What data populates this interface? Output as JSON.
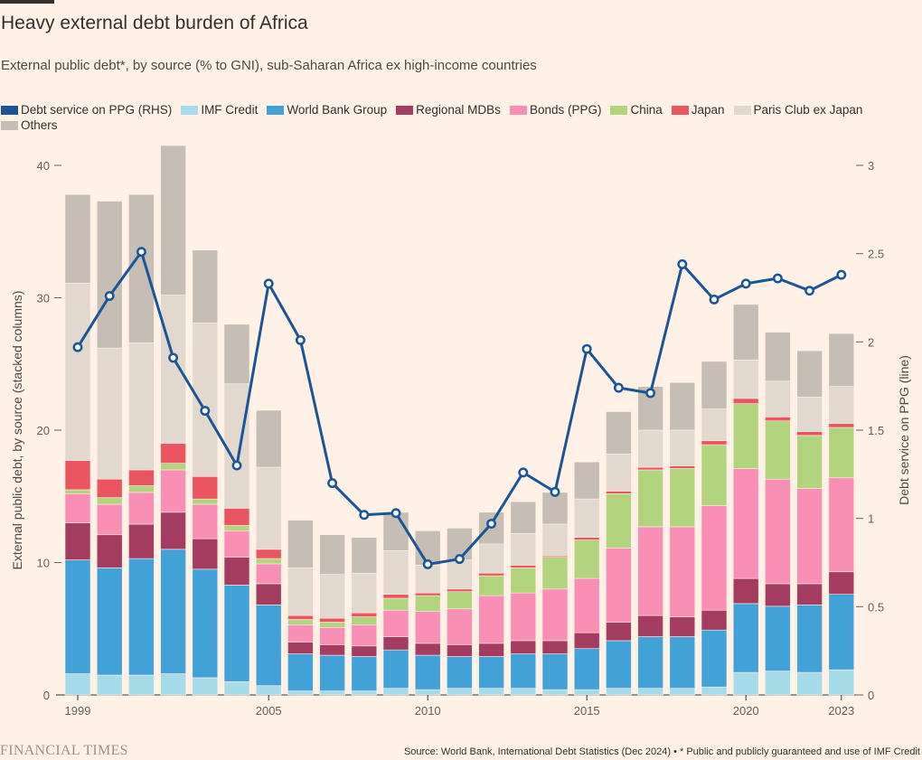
{
  "title": "Heavy external debt burden of Africa",
  "subtitle": "External public debt*, by source (% to GNI), sub-Saharan Africa ex high-income countries",
  "legend": [
    {
      "label": "Debt service on PPG (RHS)",
      "color": "#1a5598"
    },
    {
      "label": "IMF Credit",
      "color": "#a6dbea"
    },
    {
      "label": "World Bank Group",
      "color": "#42a1d6"
    },
    {
      "label": "Regional MDBs",
      "color": "#a33c5f"
    },
    {
      "label": "Bonds (PPG)",
      "color": "#f98fb5"
    },
    {
      "label": "China",
      "color": "#b3d47f"
    },
    {
      "label": "Japan",
      "color": "#eb5461"
    },
    {
      "label": "Paris Club ex Japan",
      "color": "#e3d8cd"
    },
    {
      "label": "Others",
      "color": "#c6beb4"
    }
  ],
  "footer": {
    "brand": "FINANCIAL TIMES",
    "source": "Source: World Bank, International Debt Statistics (Dec 2024) • * Public and publicly guaranteed and use of IMF Credit"
  },
  "chart_data": {
    "type": "bar",
    "stacked": true,
    "years": [
      1999,
      2000,
      2001,
      2002,
      2003,
      2004,
      2005,
      2006,
      2007,
      2008,
      2009,
      2010,
      2011,
      2012,
      2013,
      2014,
      2015,
      2016,
      2017,
      2018,
      2019,
      2020,
      2021,
      2022,
      2023
    ],
    "x_tick_labels": [
      "1999",
      "2005",
      "2010",
      "2015",
      "2020",
      "2023"
    ],
    "ylabel_left": "External public debt, by source (stacked columns)",
    "ylabel_right": "Debt service on PPG (line)",
    "ylim_left": [
      0,
      40
    ],
    "ylim_right": [
      0,
      3
    ],
    "yticks_left": [
      "0",
      "10",
      "20",
      "30",
      "40"
    ],
    "yticks_right": [
      "0",
      "0.5",
      "1",
      "1.5",
      "2",
      "2.5",
      "3"
    ],
    "series": [
      {
        "name": "IMF Credit",
        "color": "#a6dbea",
        "values": [
          1.6,
          1.5,
          1.5,
          1.6,
          1.3,
          1.0,
          0.7,
          0.3,
          0.3,
          0.3,
          0.5,
          0.4,
          0.5,
          0.5,
          0.5,
          0.4,
          0.4,
          0.5,
          0.5,
          0.5,
          0.6,
          1.7,
          1.8,
          1.7,
          1.9
        ]
      },
      {
        "name": "World Bank Group",
        "color": "#42a1d6",
        "values": [
          8.6,
          8.1,
          8.8,
          9.4,
          8.2,
          7.3,
          6.1,
          2.8,
          2.7,
          2.6,
          2.9,
          2.6,
          2.4,
          2.4,
          2.6,
          2.7,
          3.1,
          3.6,
          3.9,
          3.9,
          4.3,
          5.2,
          4.9,
          5.1,
          5.7
        ]
      },
      {
        "name": "Regional MDBs",
        "color": "#a33c5f",
        "values": [
          2.8,
          2.5,
          2.6,
          2.8,
          2.3,
          2.1,
          1.6,
          0.9,
          0.8,
          0.8,
          1.0,
          0.9,
          0.9,
          1.0,
          1.0,
          1.0,
          1.2,
          1.4,
          1.6,
          1.5,
          1.5,
          1.9,
          1.7,
          1.6,
          1.7
        ]
      },
      {
        "name": "Bonds (PPG)",
        "color": "#f98fb5",
        "values": [
          2.2,
          2.3,
          2.4,
          3.2,
          2.6,
          2.0,
          1.5,
          1.3,
          1.3,
          1.6,
          2.0,
          2.4,
          2.7,
          3.6,
          3.6,
          3.9,
          4.1,
          5.6,
          6.7,
          6.8,
          7.9,
          8.3,
          7.9,
          7.2,
          7.1
        ]
      },
      {
        "name": "China",
        "color": "#b3d47f",
        "values": [
          0.3,
          0.5,
          0.5,
          0.5,
          0.4,
          0.4,
          0.4,
          0.4,
          0.4,
          0.6,
          0.9,
          1.2,
          1.3,
          1.5,
          1.9,
          2.4,
          2.9,
          4.1,
          4.3,
          4.4,
          4.6,
          4.9,
          4.4,
          4.0,
          3.8
        ]
      },
      {
        "name": "Japan",
        "color": "#eb5461",
        "values": [
          2.2,
          1.4,
          1.2,
          1.5,
          1.7,
          1.3,
          0.7,
          0.3,
          0.3,
          0.3,
          0.3,
          0.2,
          0.2,
          0.2,
          0.2,
          0.1,
          0.2,
          0.2,
          0.2,
          0.2,
          0.3,
          0.4,
          0.3,
          0.3,
          0.3
        ]
      },
      {
        "name": "Paris Club ex Japan",
        "color": "#e3d8cd",
        "values": [
          13.4,
          9.9,
          9.6,
          11.2,
          11.6,
          9.4,
          6.2,
          3.6,
          3.3,
          3.0,
          3.3,
          2.1,
          2.2,
          2.2,
          2.4,
          2.4,
          2.9,
          2.8,
          2.8,
          2.7,
          2.4,
          2.9,
          2.7,
          2.6,
          2.8
        ]
      },
      {
        "name": "Others",
        "color": "#c6beb4",
        "values": [
          6.7,
          11.1,
          11.2,
          11.3,
          5.5,
          4.5,
          4.3,
          3.6,
          3.0,
          2.7,
          2.9,
          2.6,
          2.4,
          2.4,
          2.4,
          2.4,
          2.8,
          3.2,
          3.3,
          3.6,
          3.6,
          4.2,
          3.7,
          3.5,
          4.0
        ]
      }
    ],
    "line": {
      "name": "Debt service on PPG (RHS)",
      "color": "#1a5598",
      "values": [
        1.97,
        2.26,
        2.51,
        1.91,
        1.61,
        1.3,
        2.33,
        2.01,
        1.2,
        1.02,
        1.03,
        0.74,
        0.77,
        0.97,
        1.26,
        1.15,
        1.96,
        1.74,
        1.71,
        2.44,
        2.24,
        2.33,
        2.36,
        2.29,
        2.38
      ]
    }
  }
}
